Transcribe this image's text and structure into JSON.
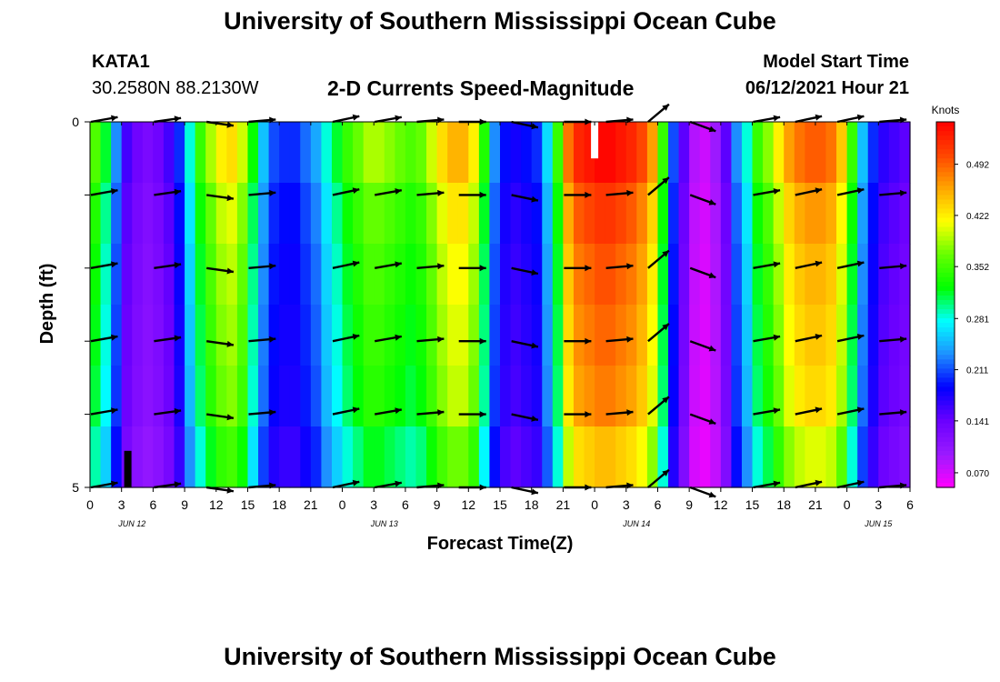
{
  "header": {
    "title": "University of Southern Mississippi Ocean Cube",
    "station_id": "KATA1",
    "station_coords": "30.2580N  88.2130W",
    "chart_title": "2-D Currents Speed-Magnitude",
    "model_label": "Model Start Time",
    "model_time": "06/12/2021 Hour 21"
  },
  "footer": {
    "title": "University of Southern Mississippi Ocean Cube"
  },
  "chart_data": {
    "type": "heatmap",
    "title": "2-D Currents Speed-Magnitude",
    "xlabel": "Forecast Time(Z)",
    "ylabel": "Depth (ft)",
    "ylim": [
      0,
      5
    ],
    "y_tick_labels": [
      "0",
      "5"
    ],
    "x_hours": [
      0,
      3,
      6,
      9,
      12,
      15,
      18,
      21,
      24,
      27,
      30,
      33,
      36,
      39,
      42,
      45,
      48,
      51,
      54,
      57,
      60,
      63,
      66,
      69,
      72,
      75,
      78
    ],
    "x_tick_labels": [
      "0",
      "3",
      "6",
      "9",
      "12",
      "15",
      "18",
      "21",
      "0",
      "3",
      "6",
      "9",
      "12",
      "15",
      "18",
      "21",
      "0",
      "3",
      "6",
      "9",
      "12",
      "15",
      "18",
      "21",
      "0",
      "3",
      "6"
    ],
    "date_labels": [
      {
        "label": "JUN 12",
        "hour": 4
      },
      {
        "label": "JUN 13",
        "hour": 28
      },
      {
        "label": "JUN 14",
        "hour": 52
      },
      {
        "label": "JUN 15",
        "hour": 75
      }
    ],
    "colorbar": {
      "units": "Knots",
      "ticks": [
        0.07,
        0.141,
        0.211,
        0.281,
        0.352,
        0.422,
        0.492
      ],
      "tick_labels": [
        "0.070",
        "0.141",
        "0.211",
        "0.281",
        "0.352",
        "0.422",
        "0.492"
      ],
      "range": [
        0.05,
        0.55
      ],
      "colors": [
        "#ff00ff",
        "#9a1aff",
        "#6a00ff",
        "#0000ff",
        "#1e90ff",
        "#00ffff",
        "#00ff00",
        "#66ff00",
        "#ffff00",
        "#ffa500",
        "#ff4500",
        "#ff0000"
      ]
    },
    "depth_levels": [
      0,
      1,
      2,
      3,
      4,
      5
    ],
    "column_hours": [
      0,
      1,
      2,
      3,
      4,
      5,
      6,
      7,
      8,
      9,
      10,
      11,
      12,
      13,
      14,
      15,
      16,
      17,
      18,
      19,
      20,
      21,
      22,
      23,
      24,
      25,
      26,
      27,
      28,
      29,
      30,
      31,
      32,
      33,
      34,
      35,
      36,
      37,
      38,
      39,
      40,
      41,
      42,
      43,
      44,
      45,
      46,
      47,
      48,
      49,
      50,
      51,
      52,
      53,
      54,
      55,
      56,
      57,
      58,
      59,
      60,
      61,
      62,
      63,
      64,
      65,
      66,
      67,
      68,
      69,
      70,
      71,
      72,
      73,
      74,
      75,
      76,
      77
    ],
    "speed_profile": [
      0.34,
      0.3,
      0.22,
      0.15,
      0.13,
      0.12,
      0.13,
      0.15,
      0.19,
      0.27,
      0.33,
      0.37,
      0.4,
      0.41,
      0.38,
      0.31,
      0.24,
      0.2,
      0.19,
      0.19,
      0.21,
      0.23,
      0.27,
      0.3,
      0.33,
      0.35,
      0.37,
      0.37,
      0.36,
      0.35,
      0.34,
      0.35,
      0.38,
      0.41,
      0.43,
      0.43,
      0.4,
      0.32,
      0.22,
      0.18,
      0.17,
      0.18,
      0.19,
      0.25,
      0.33,
      0.46,
      0.5,
      0.51,
      0.52,
      0.52,
      0.51,
      0.5,
      0.48,
      0.44,
      0.33,
      0.2,
      0.14,
      0.08,
      0.07,
      0.09,
      0.14,
      0.22,
      0.27,
      0.33,
      0.36,
      0.4,
      0.44,
      0.46,
      0.47,
      0.47,
      0.46,
      0.42,
      0.33,
      0.24,
      0.19,
      0.16,
      0.15,
      0.14
    ],
    "depth_factor": [
      1.05,
      0.99,
      0.96,
      0.94,
      0.92,
      0.86
    ],
    "vector_times": [
      0,
      6,
      11,
      15,
      23,
      27,
      31,
      35,
      40,
      45,
      49,
      53,
      57,
      63,
      67,
      71,
      75
    ],
    "vector_directions_deg": [
      10,
      8,
      -8,
      5,
      12,
      10,
      5,
      0,
      -12,
      0,
      5,
      40,
      -20,
      10,
      12,
      12,
      5
    ],
    "obs_markers": [
      {
        "hour": 48,
        "depth_from": 0,
        "depth_to": 0.5,
        "color": "#ffffff"
      },
      {
        "hour": 3.6,
        "depth_from": 4.5,
        "depth_to": 5,
        "color": "#000000"
      }
    ]
  }
}
